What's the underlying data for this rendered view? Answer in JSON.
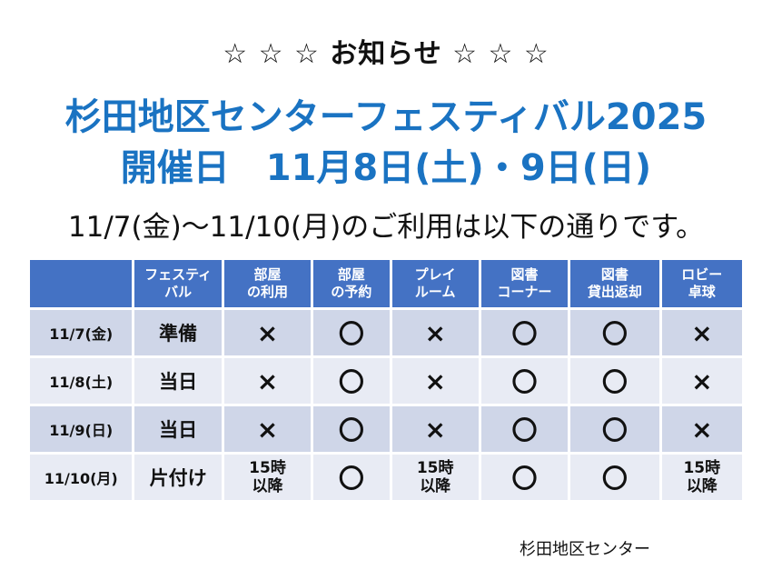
{
  "notice": {
    "heading": "☆ ☆ ☆ お知らせ ☆ ☆ ☆",
    "title_line1": "杉田地区センターフェスティバル2025",
    "title_line2": "開催日　11月8日(土)・9日(日)",
    "subtitle": "11/7(金)～11/10(月)のご利用は以下の通りです。",
    "footer": "杉田地区センター"
  },
  "colors": {
    "title": "#1a73c2",
    "header_bg": "#4472c4",
    "row_odd": "#cfd6e8",
    "row_even": "#e8ebf4"
  },
  "table": {
    "columns": [
      "",
      "フェスティ\nバル",
      "部屋\nの利用",
      "部屋\nの予約",
      "プレイ\nルーム",
      "図書\nコーナー",
      "図書\n貸出返却",
      "ロビー\n卓球"
    ],
    "rows": [
      {
        "date": "11/7(金)",
        "stage": "準備",
        "marks": [
          "×",
          "〇",
          "×",
          "〇",
          "〇",
          "×"
        ]
      },
      {
        "date": "11/8(土)",
        "stage": "当日",
        "marks": [
          "×",
          "〇",
          "×",
          "〇",
          "〇",
          "×"
        ]
      },
      {
        "date": "11/9(日)",
        "stage": "当日",
        "marks": [
          "×",
          "〇",
          "×",
          "〇",
          "〇",
          "×"
        ]
      },
      {
        "date": "11/10(月)",
        "stage": "片付け",
        "marks": [
          "15時\n以降",
          "〇",
          "15時\n以降",
          "〇",
          "〇",
          "15時\n以降"
        ]
      }
    ]
  }
}
